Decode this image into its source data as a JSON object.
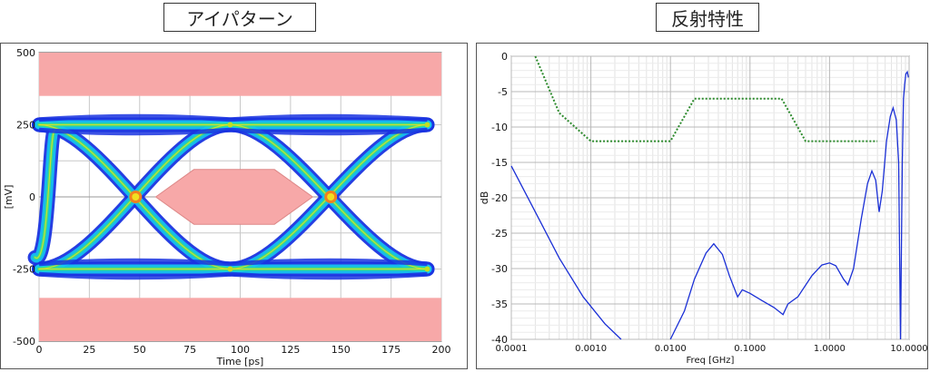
{
  "titles": {
    "left": "アイパターン",
    "right": "反射特性"
  },
  "chart_data": [
    {
      "type": "eye-diagram",
      "title": "アイパターン",
      "xlabel": "Time [ps]",
      "ylabel": "[mV]",
      "xlim": [
        0,
        200
      ],
      "ylim": [
        -500,
        500
      ],
      "xticks": [
        0,
        25,
        50,
        75,
        100,
        125,
        150,
        175,
        200
      ],
      "yticks": [
        500,
        250,
        0,
        -250,
        -500
      ],
      "grid": true,
      "levels_mV": [
        250,
        -250
      ],
      "crossings_ps": [
        48,
        145
      ],
      "colors": {
        "mask": "#f7a8a8",
        "eye_outer": "#1a34e0",
        "eye_mid": "#14c8f0",
        "eye_core": "#3ee07a",
        "eye_hot": "#f0e020"
      }
    },
    {
      "type": "line",
      "title": "反射特性",
      "xlabel": "Freq [GHz]",
      "ylabel": "dB",
      "xscale": "log",
      "xlim": [
        0.0001,
        10
      ],
      "ylim": [
        -40,
        0
      ],
      "xticks": [
        "0.0001",
        "0.0010",
        "0.0100",
        "0.1000",
        "1.0000",
        "10.0000"
      ],
      "yticks": [
        0,
        -5,
        -10,
        -15,
        -20,
        -25,
        -30,
        -35,
        -40
      ],
      "grid": true,
      "series": [
        {
          "style": "solid",
          "color": "#1a2fd6",
          "points": [
            [
              0.0001,
              -15.5
            ],
            [
              0.0002,
              -22
            ],
            [
              0.0004,
              -28.5
            ],
            [
              0.0008,
              -34
            ],
            [
              0.0015,
              -37.8
            ],
            [
              0.0024,
              -40
            ]
          ]
        },
        {
          "style": "solid",
          "color": "#1a2fd6",
          "points": [
            [
              0.01,
              -40
            ],
            [
              0.015,
              -36
            ],
            [
              0.02,
              -31.5
            ],
            [
              0.028,
              -27.8
            ],
            [
              0.035,
              -26.5
            ],
            [
              0.045,
              -28
            ],
            [
              0.055,
              -31
            ],
            [
              0.07,
              -34
            ],
            [
              0.08,
              -33
            ],
            [
              0.1,
              -33.5
            ],
            [
              0.14,
              -34.5
            ],
            [
              0.2,
              -35.5
            ],
            [
              0.26,
              -36.5
            ],
            [
              0.3,
              -35
            ],
            [
              0.4,
              -34
            ],
            [
              0.6,
              -31
            ],
            [
              0.8,
              -29.5
            ],
            [
              1.0,
              -29.2
            ],
            [
              1.2,
              -29.6
            ],
            [
              1.5,
              -31.5
            ],
            [
              1.7,
              -32.3
            ],
            [
              2.0,
              -30
            ],
            [
              2.5,
              -23
            ],
            [
              3.0,
              -18
            ],
            [
              3.4,
              -16.2
            ],
            [
              3.8,
              -17.5
            ],
            [
              4.2,
              -22
            ],
            [
              4.6,
              -19
            ],
            [
              5.2,
              -12
            ],
            [
              5.8,
              -8.5
            ],
            [
              6.3,
              -7.3
            ],
            [
              6.9,
              -9
            ],
            [
              7.4,
              -15
            ],
            [
              7.8,
              -40
            ],
            [
              8.2,
              -15
            ],
            [
              8.5,
              -6
            ],
            [
              8.8,
              -4
            ],
            [
              9.1,
              -2.5
            ],
            [
              9.5,
              -2.2
            ],
            [
              9.8,
              -3
            ]
          ]
        },
        {
          "style": "dotted",
          "color": "#2e8b2e",
          "points": [
            [
              0.0002,
              0
            ],
            [
              0.0004,
              -8
            ],
            [
              0.001,
              -12
            ],
            [
              0.01,
              -12
            ],
            [
              0.02,
              -6
            ],
            [
              0.25,
              -6
            ],
            [
              0.5,
              -12
            ],
            [
              4,
              -12
            ]
          ]
        }
      ]
    }
  ]
}
